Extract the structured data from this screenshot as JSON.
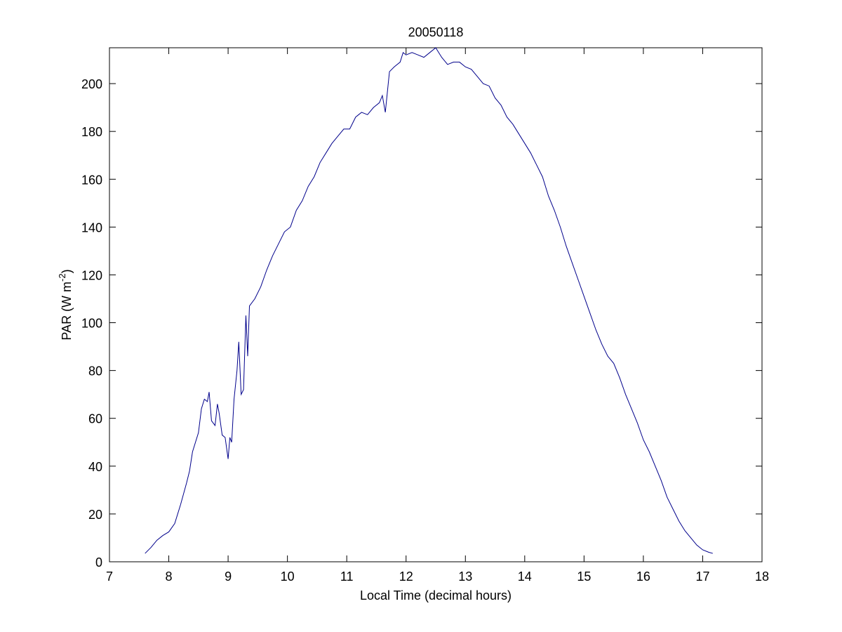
{
  "chart_data": {
    "type": "line",
    "title": "20050118",
    "xlabel": "Local Time (decimal hours)",
    "ylabel": {
      "text": "PAR (W m",
      "superscript": "-2",
      "suffix": ")"
    },
    "xlim": [
      7,
      18
    ],
    "xticks": [
      7,
      8,
      9,
      10,
      11,
      12,
      13,
      14,
      15,
      16,
      17,
      18
    ],
    "ylim": [
      0,
      215
    ],
    "yticks": [
      0,
      20,
      40,
      60,
      80,
      100,
      120,
      140,
      160,
      180,
      200
    ],
    "grid": false,
    "series": [
      {
        "color": "#00008b",
        "x": [
          7.6,
          7.7,
          7.8,
          7.9,
          8.0,
          8.1,
          8.2,
          8.3,
          8.35,
          8.4,
          8.5,
          8.55,
          8.6,
          8.65,
          8.68,
          8.72,
          8.78,
          8.82,
          8.85,
          8.9,
          8.95,
          9.0,
          9.03,
          9.06,
          9.1,
          9.15,
          9.18,
          9.22,
          9.26,
          9.3,
          9.33,
          9.36,
          9.45,
          9.55,
          9.65,
          9.75,
          9.85,
          9.95,
          10.05,
          10.15,
          10.25,
          10.35,
          10.45,
          10.55,
          10.65,
          10.75,
          10.85,
          10.95,
          11.05,
          11.15,
          11.25,
          11.35,
          11.45,
          11.55,
          11.6,
          11.65,
          11.72,
          11.8,
          11.9,
          11.95,
          12.0,
          12.1,
          12.2,
          12.3,
          12.4,
          12.5,
          12.6,
          12.7,
          12.8,
          12.9,
          13.0,
          13.1,
          13.2,
          13.3,
          13.4,
          13.5,
          13.6,
          13.7,
          13.8,
          13.9,
          14.0,
          14.1,
          14.2,
          14.3,
          14.4,
          14.5,
          14.6,
          14.7,
          14.8,
          14.9,
          15.0,
          15.1,
          15.2,
          15.3,
          15.4,
          15.5,
          15.6,
          15.7,
          15.8,
          15.9,
          16.0,
          16.1,
          16.2,
          16.3,
          16.4,
          16.5,
          16.6,
          16.7,
          16.8,
          16.9,
          17.0,
          17.1,
          17.17
        ],
        "values": [
          3.5,
          6,
          9,
          11,
          12.5,
          16,
          24,
          33,
          38,
          46,
          54,
          64,
          68,
          67,
          71,
          59,
          57,
          66,
          62,
          53,
          52,
          43,
          52,
          50,
          68,
          80,
          92,
          70,
          72,
          103,
          86,
          107,
          110,
          115,
          122,
          128,
          133,
          138,
          140,
          147,
          151,
          157,
          161,
          167,
          171,
          175,
          178,
          181,
          181,
          186,
          188,
          187,
          190,
          192,
          195,
          188,
          205,
          207,
          209,
          213,
          212,
          213,
          212,
          211,
          213,
          215,
          211,
          208,
          209,
          209,
          207,
          206,
          203,
          200,
          199,
          194,
          191,
          186,
          183,
          179,
          175,
          171,
          166,
          161,
          153,
          147,
          140,
          132,
          125,
          118,
          111,
          104,
          97,
          91,
          86,
          83,
          77,
          70,
          64,
          58,
          51,
          46,
          40,
          34,
          27,
          22,
          17,
          13,
          10,
          7,
          5,
          4,
          3.5
        ]
      }
    ]
  }
}
